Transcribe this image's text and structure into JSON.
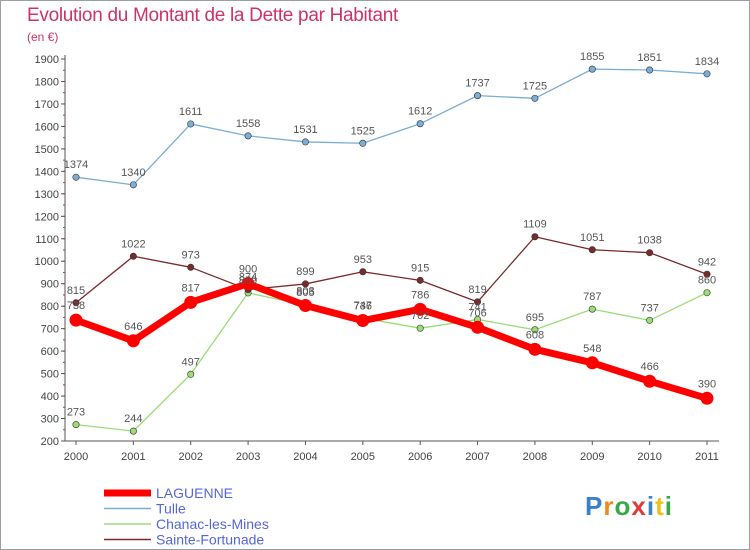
{
  "title": "Evolution du Montant de la Dette par Habitant",
  "subtitle": "(en €)",
  "logo": "Proxiti",
  "chart_data": {
    "type": "line",
    "title": "Evolution du Montant de la Dette par Habitant",
    "ylabel": "(en €)",
    "xlabel": "",
    "ylim": [
      200,
      1900
    ],
    "yticks": [
      200,
      300,
      400,
      500,
      600,
      700,
      800,
      900,
      1000,
      1100,
      1200,
      1300,
      1400,
      1500,
      1600,
      1700,
      1800,
      1900
    ],
    "categories": [
      "2000",
      "2001",
      "2002",
      "2003",
      "2004",
      "2005",
      "2006",
      "2007",
      "2008",
      "2009",
      "2010",
      "2011"
    ],
    "grid": false,
    "legend": "bottom-left",
    "series": [
      {
        "name": "LAGUENNE",
        "color": "#ff0000",
        "values": [
          738,
          646,
          817,
          900,
          803,
          736,
          786,
          706,
          608,
          548,
          466,
          390
        ]
      },
      {
        "name": "Tulle",
        "color": "#7aaed4",
        "values": [
          1374,
          1340,
          1611,
          1558,
          1531,
          1525,
          1612,
          1737,
          1725,
          1855,
          1851,
          1834
        ]
      },
      {
        "name": "Chanac-les-Mines",
        "color": "#99dd77",
        "values": [
          273,
          244,
          497,
          859,
          805,
          747,
          702,
          741,
          695,
          787,
          737,
          860
        ]
      },
      {
        "name": "Sainte-Fortunade",
        "color": "#7a2a2a",
        "values": [
          815,
          1022,
          973,
          874,
          899,
          953,
          915,
          819,
          1109,
          1051,
          1038,
          942
        ]
      }
    ]
  }
}
